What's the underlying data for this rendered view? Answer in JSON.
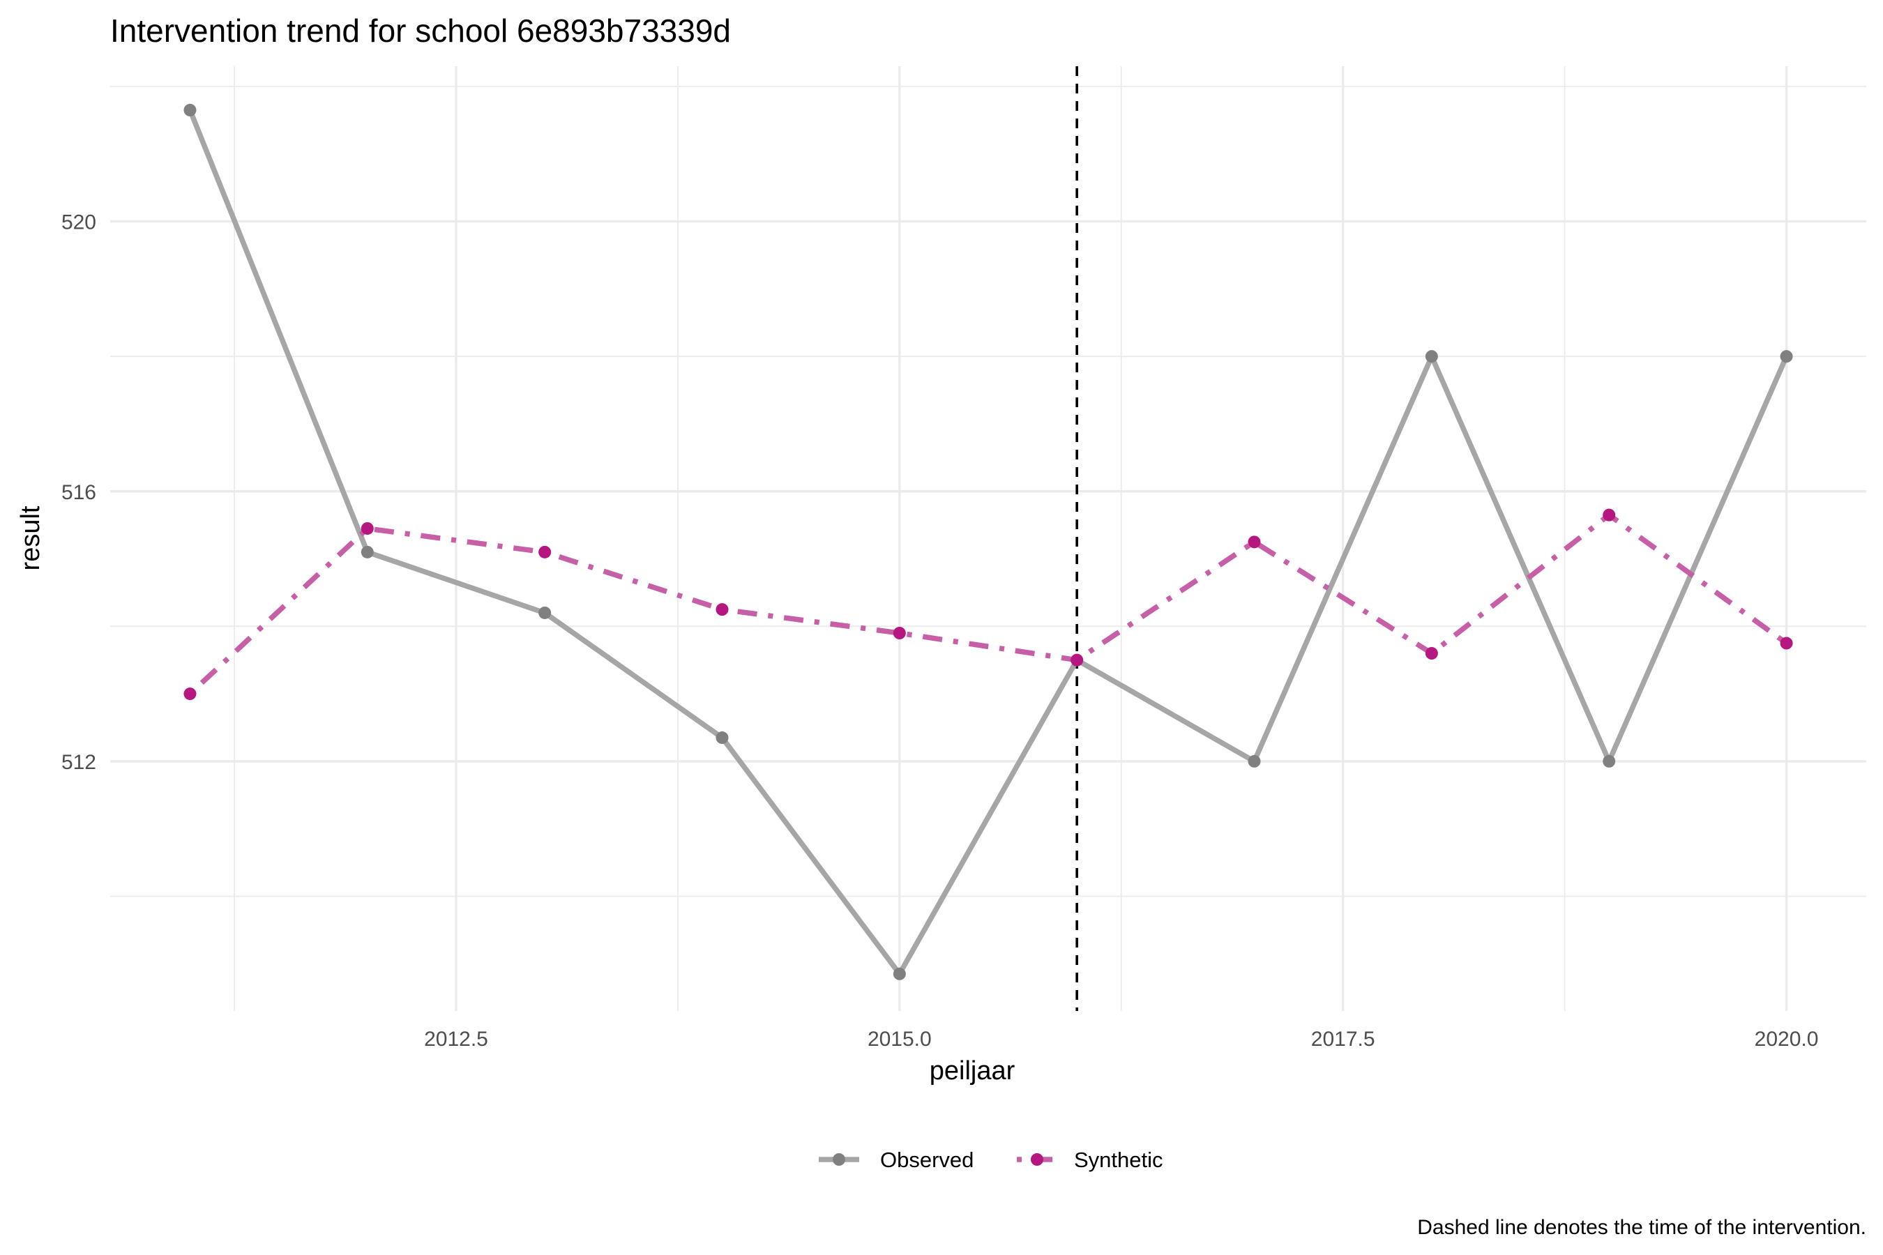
{
  "chart_data": {
    "type": "line",
    "title": "Intervention trend for school 6e893b73339d",
    "xlabel": "peiljaar",
    "ylabel": "result",
    "caption": "Dashed line denotes the time of the intervention.",
    "xlim": [
      2010.55,
      2020.45
    ],
    "ylim": [
      508.3,
      522.3
    ],
    "x_ticks": [
      {
        "value": 2012.5,
        "label": "2012.5"
      },
      {
        "value": 2015.0,
        "label": "2015.0"
      },
      {
        "value": 2017.5,
        "label": "2017.5"
      },
      {
        "value": 2020.0,
        "label": "2020.0"
      }
    ],
    "y_ticks": [
      {
        "value": 512,
        "label": "512"
      },
      {
        "value": 516,
        "label": "516"
      },
      {
        "value": 520,
        "label": "520"
      }
    ],
    "grid": true,
    "intervention_x": 2016,
    "legend_position": "bottom",
    "series": [
      {
        "name": "Observed",
        "color": "#808080",
        "line_color": "#a6a6a6",
        "line_style": "solid",
        "x": [
          2011,
          2012,
          2013,
          2014,
          2015,
          2016,
          2017,
          2018,
          2019,
          2020
        ],
        "values": [
          521.65,
          515.1,
          514.2,
          512.35,
          508.85,
          513.5,
          512.0,
          518.0,
          512.0,
          518.0
        ]
      },
      {
        "name": "Synthetic",
        "color": "#b5167f",
        "line_color": "#c75fa7",
        "line_style": "dotdash",
        "x": [
          2011,
          2012,
          2013,
          2014,
          2015,
          2016,
          2017,
          2018,
          2019,
          2020
        ],
        "values": [
          513.0,
          515.45,
          515.1,
          514.25,
          513.9,
          513.5,
          515.25,
          513.6,
          515.65,
          513.75
        ]
      }
    ]
  }
}
